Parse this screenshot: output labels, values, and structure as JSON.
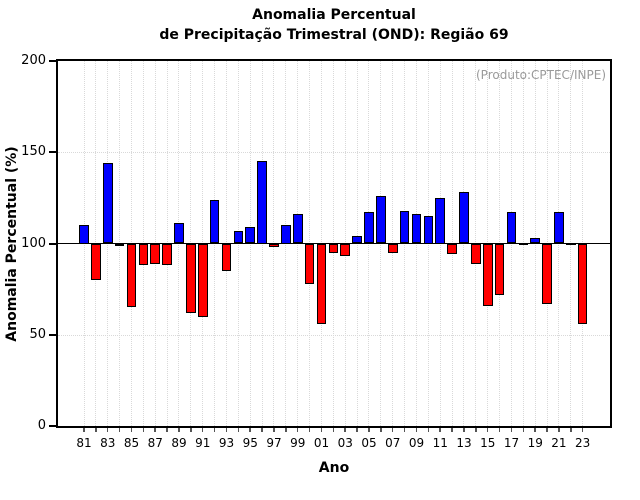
{
  "title": {
    "line1": "Anomalia Percentual",
    "line2": "de Precipitação Trimestral (OND): Região 69"
  },
  "annotation": {
    "text": "(Produto:CPTEC/INPE)",
    "color": "#9a9a9a"
  },
  "chart_data": {
    "type": "bar",
    "title": "Anomalia Percentual de Precipitação Trimestral (OND): Região 69",
    "xlabel": "Ano",
    "ylabel": "Anomalia Percentual (%)",
    "ylim": [
      0,
      200
    ],
    "yticks": [
      0,
      50,
      100,
      150,
      200
    ],
    "baseline": 100,
    "grid_dotted_y": [
      50,
      150
    ],
    "grid": "dotted vertical line at every year, dotted horizontal at 50 and 150, solid line at 100",
    "legend_position": "none",
    "bar_colors": {
      "above": "#0000ff",
      "below": "#ff0000",
      "edge": "#000000"
    },
    "years": [
      1981,
      1982,
      1983,
      1984,
      1985,
      1986,
      1987,
      1988,
      1989,
      1990,
      1991,
      1992,
      1993,
      1994,
      1995,
      1996,
      1997,
      1998,
      1999,
      2000,
      2001,
      2002,
      2003,
      2004,
      2005,
      2006,
      2007,
      2008,
      2009,
      2010,
      2011,
      2012,
      2013,
      2014,
      2015,
      2016,
      2017,
      2018,
      2019,
      2020,
      2021,
      2022,
      2023
    ],
    "values": [
      110,
      80,
      144,
      99,
      65,
      88,
      89,
      88,
      111,
      62,
      60,
      124,
      85,
      107,
      109,
      145,
      98,
      110,
      116,
      78,
      56,
      95,
      93,
      104,
      117,
      126,
      95,
      118,
      116,
      115,
      125,
      94,
      128,
      89,
      66,
      72,
      117,
      100,
      103,
      67,
      117,
      100,
      56
    ],
    "xtick_labels": [
      "81",
      "83",
      "85",
      "87",
      "89",
      "91",
      "93",
      "95",
      "97",
      "99",
      "01",
      "03",
      "05",
      "07",
      "09",
      "11",
      "13",
      "15",
      "17",
      "19",
      "21",
      "23"
    ],
    "xtick_label_every": 2
  }
}
